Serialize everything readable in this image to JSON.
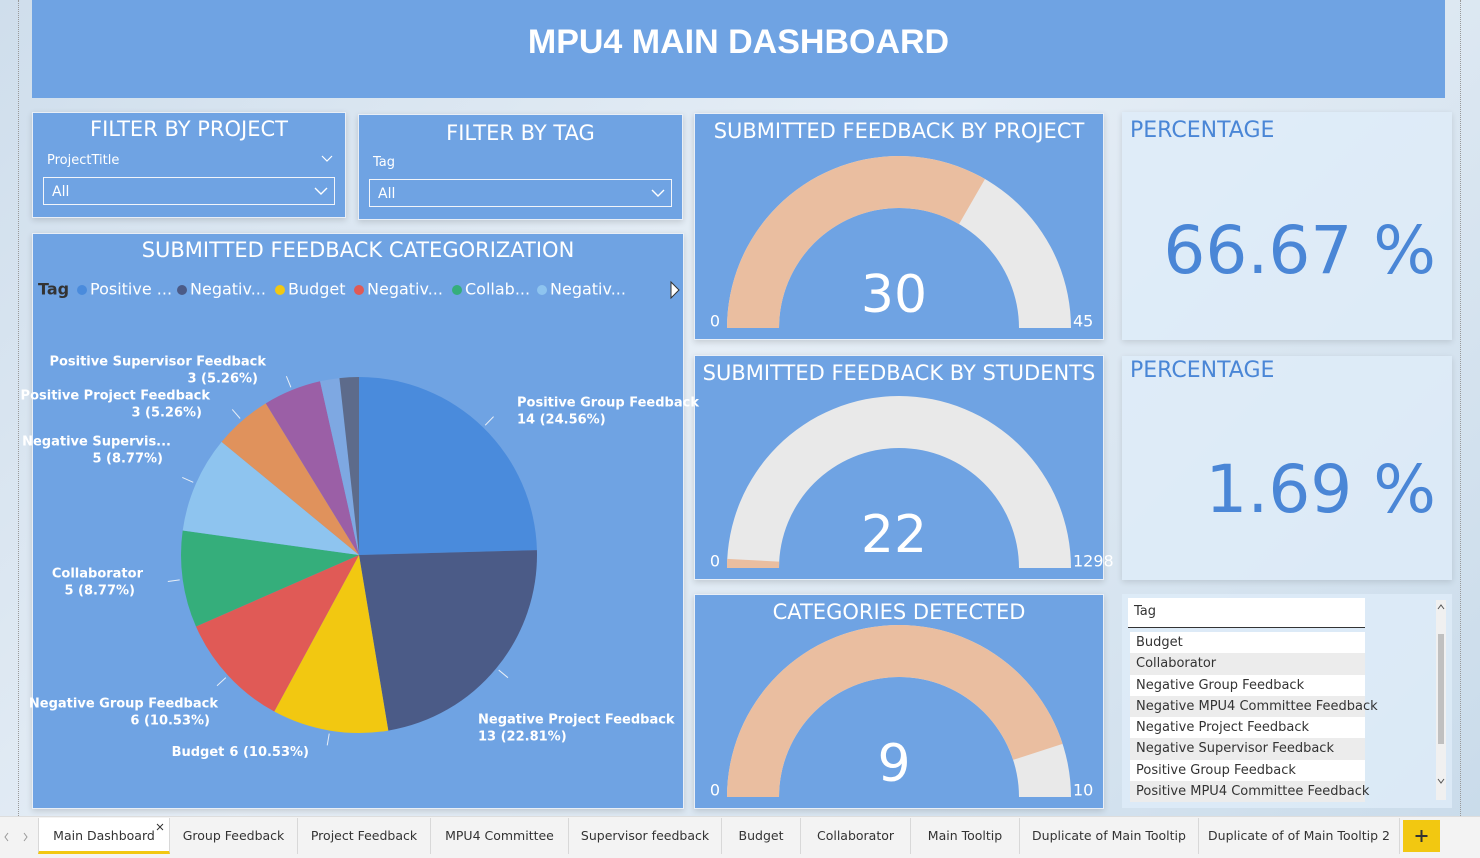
{
  "header": {
    "title": "MPU4 MAIN DASHBOARD"
  },
  "filters": [
    {
      "title": "FILTER BY PROJECT",
      "field": "ProjectTitle",
      "selected": "All"
    },
    {
      "title": "FILTER BY TAG",
      "field": "Tag",
      "selected": "All"
    }
  ],
  "chart_data": [
    {
      "type": "pie",
      "title": "SUBMITTED FEEDBACK CATEGORIZATION",
      "legend": {
        "title": "Tag",
        "labels": [
          "Positive ...",
          "Negativ...",
          "Budget",
          "Negativ...",
          "Collab...",
          "Negativ..."
        ]
      },
      "categories": [
        "Positive Group Feedback",
        "Negative Project Feedback",
        "Budget",
        "Negative Group Feedback",
        "Collaborator",
        "Negative Supervis...",
        "Positive Project Feedback",
        "Positive Supervisor Feedback",
        null,
        null
      ],
      "values": [
        14,
        13,
        6,
        6,
        5,
        5,
        3,
        3,
        1,
        1
      ],
      "value_labels": [
        "14 (24.56%)",
        "13 (22.81%)",
        "6 (10.53%)",
        "6 (10.53%)",
        "5 (8.77%)",
        "5 (8.77%)",
        "3 (5.26%)",
        "3 (5.26%)",
        null,
        null
      ],
      "colors": [
        "#4a8bdc",
        "#4b5b87",
        "#f2c811",
        "#e05a56",
        "#35ae7b",
        "#8ec4ef",
        "#e0925c",
        "#9b5fa6",
        "#7ea8e2",
        "#5d6b8b"
      ]
    },
    {
      "type": "gauge",
      "title": "SUBMITTED FEEDBACK BY PROJECT",
      "value": 30,
      "min": 0,
      "max": 45,
      "color": "#eabea0",
      "track_color": "#e9e9e9"
    },
    {
      "type": "gauge",
      "title": "SUBMITTED FEEDBACK BY STUDENTS",
      "value": 22,
      "min": 0,
      "max": 1298,
      "color": "#eabea0",
      "track_color": "#e9e9e9"
    },
    {
      "type": "gauge",
      "title": "CATEGORIES DETECTED",
      "value": 9,
      "min": 0,
      "max": 10,
      "color": "#eabea0",
      "track_color": "#e9e9e9"
    }
  ],
  "cards": [
    {
      "title": "PERCENTAGE",
      "value": "66.67 %"
    },
    {
      "title": "PERCENTAGE",
      "value": "1.69 %"
    }
  ],
  "slicer_list": {
    "header": "Tag",
    "items": [
      "Budget",
      "Collaborator",
      "Negative Group Feedback",
      "Negative MPU4 Committee Feedback",
      "Negative Project Feedback",
      "Negative Supervisor Feedback",
      "Positive Group Feedback",
      "Positive MPU4 Committee Feedback"
    ]
  },
  "tabs": [
    "Main Dashboard",
    "Group Feedback",
    "Project Feedback",
    "MPU4 Committee",
    "Supervisor feedback",
    "Budget",
    "Collaborator",
    "Main Tooltip",
    "Duplicate of Main Tooltip",
    "Duplicate of of Main Tooltip 2"
  ]
}
